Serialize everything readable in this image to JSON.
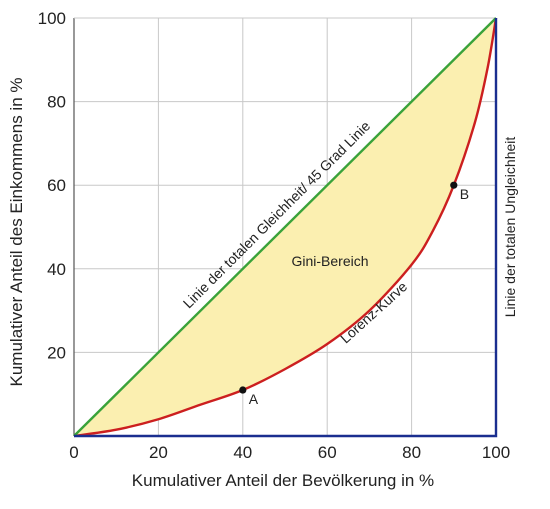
{
  "chart_data": {
    "type": "line",
    "title": "",
    "xlabel": "Kumulativer Anteil der Bevölkerung in %",
    "ylabel": "Kumulativer Anteil des Einkommens in %",
    "xlim": [
      0,
      100
    ],
    "ylim": [
      0,
      100
    ],
    "x_ticks": [
      0,
      20,
      40,
      60,
      80,
      100
    ],
    "y_ticks": [
      20,
      40,
      60,
      80,
      100
    ],
    "x_tick_labels": [
      "0",
      "20",
      "40",
      "60",
      "80",
      "100"
    ],
    "y_tick_labels": [
      "20",
      "40",
      "60",
      "80",
      "100"
    ],
    "grid": true,
    "series": [
      {
        "name": "Linie der totalen Gleichheit/ 45 Grad Linie",
        "color": "#3aa23a",
        "x": [
          0,
          100
        ],
        "y": [
          0,
          100
        ]
      },
      {
        "name": "Lorenz-Kurve",
        "color": "#cc1f1f",
        "x": [
          0,
          10,
          20,
          30,
          40,
          50,
          60,
          70,
          80,
          85,
          90,
          95,
          98,
          100
        ],
        "y": [
          0,
          1.5,
          4,
          7.5,
          11,
          16,
          22,
          30,
          41,
          49,
          60,
          75,
          88,
          100
        ]
      },
      {
        "name": "Linie der totalen Ungleichheit",
        "color": "#1a2e8f",
        "x": [
          0,
          100,
          100
        ],
        "y": [
          0,
          0,
          100
        ]
      }
    ],
    "shaded_region": {
      "label": "Gini-Bereich",
      "color": "#fbefb0"
    },
    "points": [
      {
        "label": "A",
        "x": 40,
        "y": 11
      },
      {
        "label": "B",
        "x": 90,
        "y": 60
      }
    ],
    "annotations": {
      "equality_line": "Linie der totalen Gleichheit/ 45 Grad Linie",
      "lorenz_curve": "Lorenz-Kurve",
      "gini_area": "Gini-Bereich",
      "inequality_line": "Linie der totalen Ungleichheit"
    }
  }
}
